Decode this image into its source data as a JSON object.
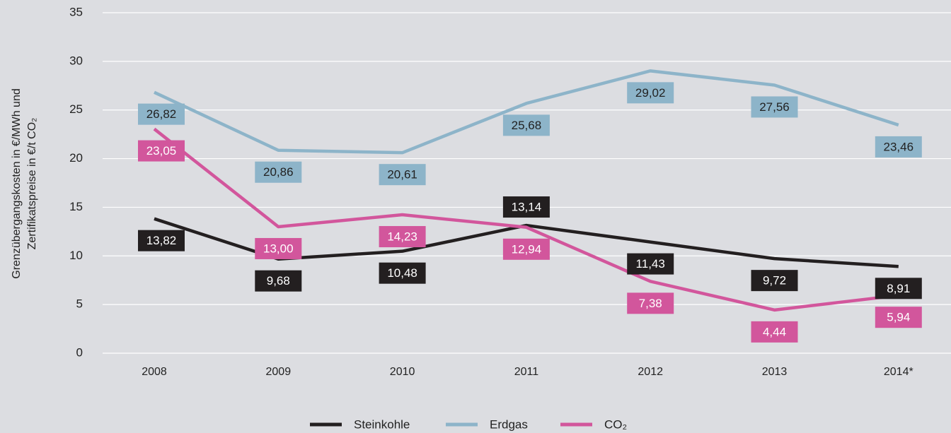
{
  "chart_data": {
    "type": "line",
    "y_label": [
      "Grenzübergangskosten in €/MWh und",
      "Zertifikatspreise in €/t CO₂"
    ],
    "categories": [
      "2008",
      "2009",
      "2010",
      "2011",
      "2012",
      "2013",
      "2014*"
    ],
    "ylim": [
      0,
      35
    ],
    "yticks": [
      0,
      5,
      10,
      15,
      20,
      25,
      30,
      35
    ],
    "grid": true,
    "legend": "bottom",
    "series": [
      {
        "name": "Steinkohle",
        "color": "#231f20",
        "values": [
          13.82,
          9.68,
          10.48,
          13.14,
          11.43,
          9.72,
          8.91
        ],
        "value_labels": [
          "13,82",
          "9,68",
          "10,48",
          "13,14",
          "11,43",
          "9,72",
          "8,91"
        ]
      },
      {
        "name": "Erdgas",
        "color": "#8db4c9",
        "values": [
          26.82,
          20.86,
          20.61,
          25.68,
          29.02,
          27.56,
          23.46
        ],
        "value_labels": [
          "26,82",
          "20,86",
          "20,61",
          "25,68",
          "29,02",
          "27,56",
          "23,46"
        ]
      },
      {
        "name": "CO₂",
        "color": "#d2569c",
        "values": [
          23.05,
          13.0,
          14.23,
          12.94,
          7.38,
          4.44,
          5.94
        ],
        "value_labels": [
          "23,05",
          "13,00",
          "14,23",
          "12,94",
          "7,38",
          "4,44",
          "5,94"
        ]
      }
    ]
  }
}
